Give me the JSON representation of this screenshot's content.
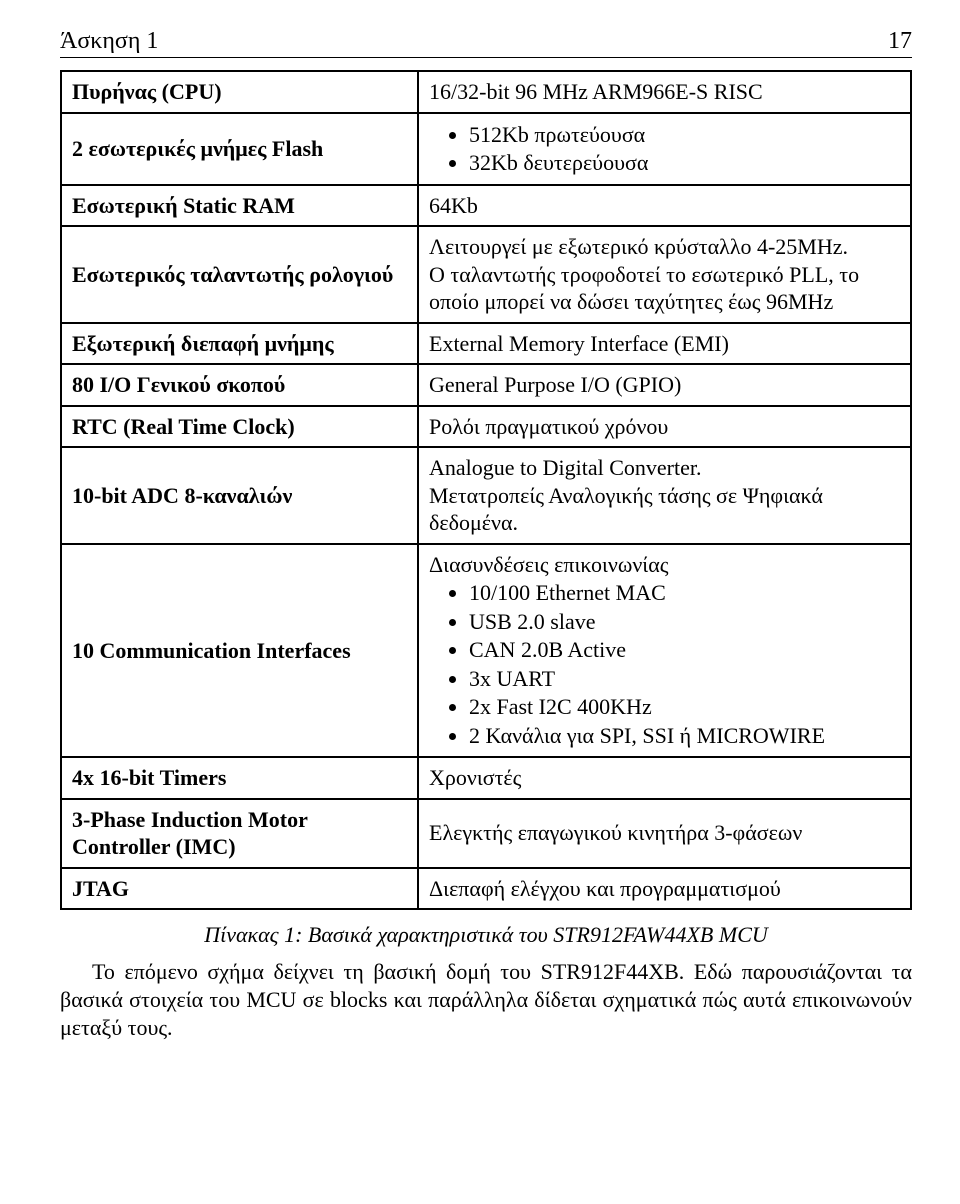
{
  "header": {
    "title": "Άσκηση 1",
    "page": "17"
  },
  "table": {
    "rows": [
      {
        "left": "Πυρήνας (CPU)",
        "rightType": "text",
        "right": "16/32-bit 96 MHz ARM966E-S RISC"
      },
      {
        "left": "2 εσωτερικές μνήμες Flash",
        "rightType": "list",
        "items": [
          "512Κb πρωτεύουσα",
          "32Kb δευτερεύουσα"
        ]
      },
      {
        "left": "Εσωτερική Static RAM",
        "rightType": "text",
        "right": "64Kb"
      },
      {
        "left": "Εσωτερικός ταλαντωτής ρολογιού",
        "rightType": "multi",
        "lines": [
          "Λειτουργεί με εξωτερικό κρύσταλλο 4-25MHz.",
          "Ο ταλαντωτής τροφοδοτεί το εσωτερικό PLL, το οποίο μπορεί να δώσει ταχύτητες έως 96MHz"
        ]
      },
      {
        "left": "Εξωτερική διεπαφή μνήμης",
        "rightType": "text",
        "right": "External Memory Interface (EMI)"
      },
      {
        "left": "80 I/O Γενικού σκοπού",
        "rightType": "text",
        "right": "General Purpose I/O (GPIO)"
      },
      {
        "left": "RTC (Real Time Clock)",
        "rightType": "text",
        "right": "Ρολόι πραγματικού χρόνου"
      },
      {
        "left": "10-bit ADC 8-καναλιών",
        "rightType": "multi",
        "lines": [
          "Analogue to Digital Converter.",
          "Μετατροπείς Αναλογικής τάσης σε Ψηφιακά δεδομένα."
        ]
      },
      {
        "left": "10 Communication Interfaces",
        "rightType": "label+list",
        "label": "Διασυνδέσεις επικοινωνίας",
        "items": [
          "10/100 Ethernet MAC",
          "USB 2.0 slave",
          "CAN 2.0B Active",
          "3x UART",
          "2x Fast I2C 400KHz",
          "2 Κανάλια για SPI, SSI ή MICROWIRE"
        ]
      },
      {
        "left": "4x 16-bit Timers",
        "rightType": "text",
        "right": "Χρονιστές"
      },
      {
        "left": "3-Phase Induction Motor Controller (IMC)",
        "rightType": "text",
        "right": "Ελεγκτής επαγωγικού κινητήρα 3-φάσεων"
      },
      {
        "left": "JTAG",
        "rightType": "text",
        "right": "Διεπαφή ελέγχου και προγραμματισμού"
      }
    ]
  },
  "caption": "Πίνακας 1: Βασικά χαρακτηριστικά του STR912FAW44XB MCU",
  "paragraph": "Το επόμενο σχήμα δείχνει τη βασική δομή του STR912F44XB. Εδώ παρουσιάζονται τα βασικά στοιχεία του MCU σε blocks και παράλληλα δίδεται σχηματικά πώς αυτά επικοινωνούν μεταξύ τους."
}
